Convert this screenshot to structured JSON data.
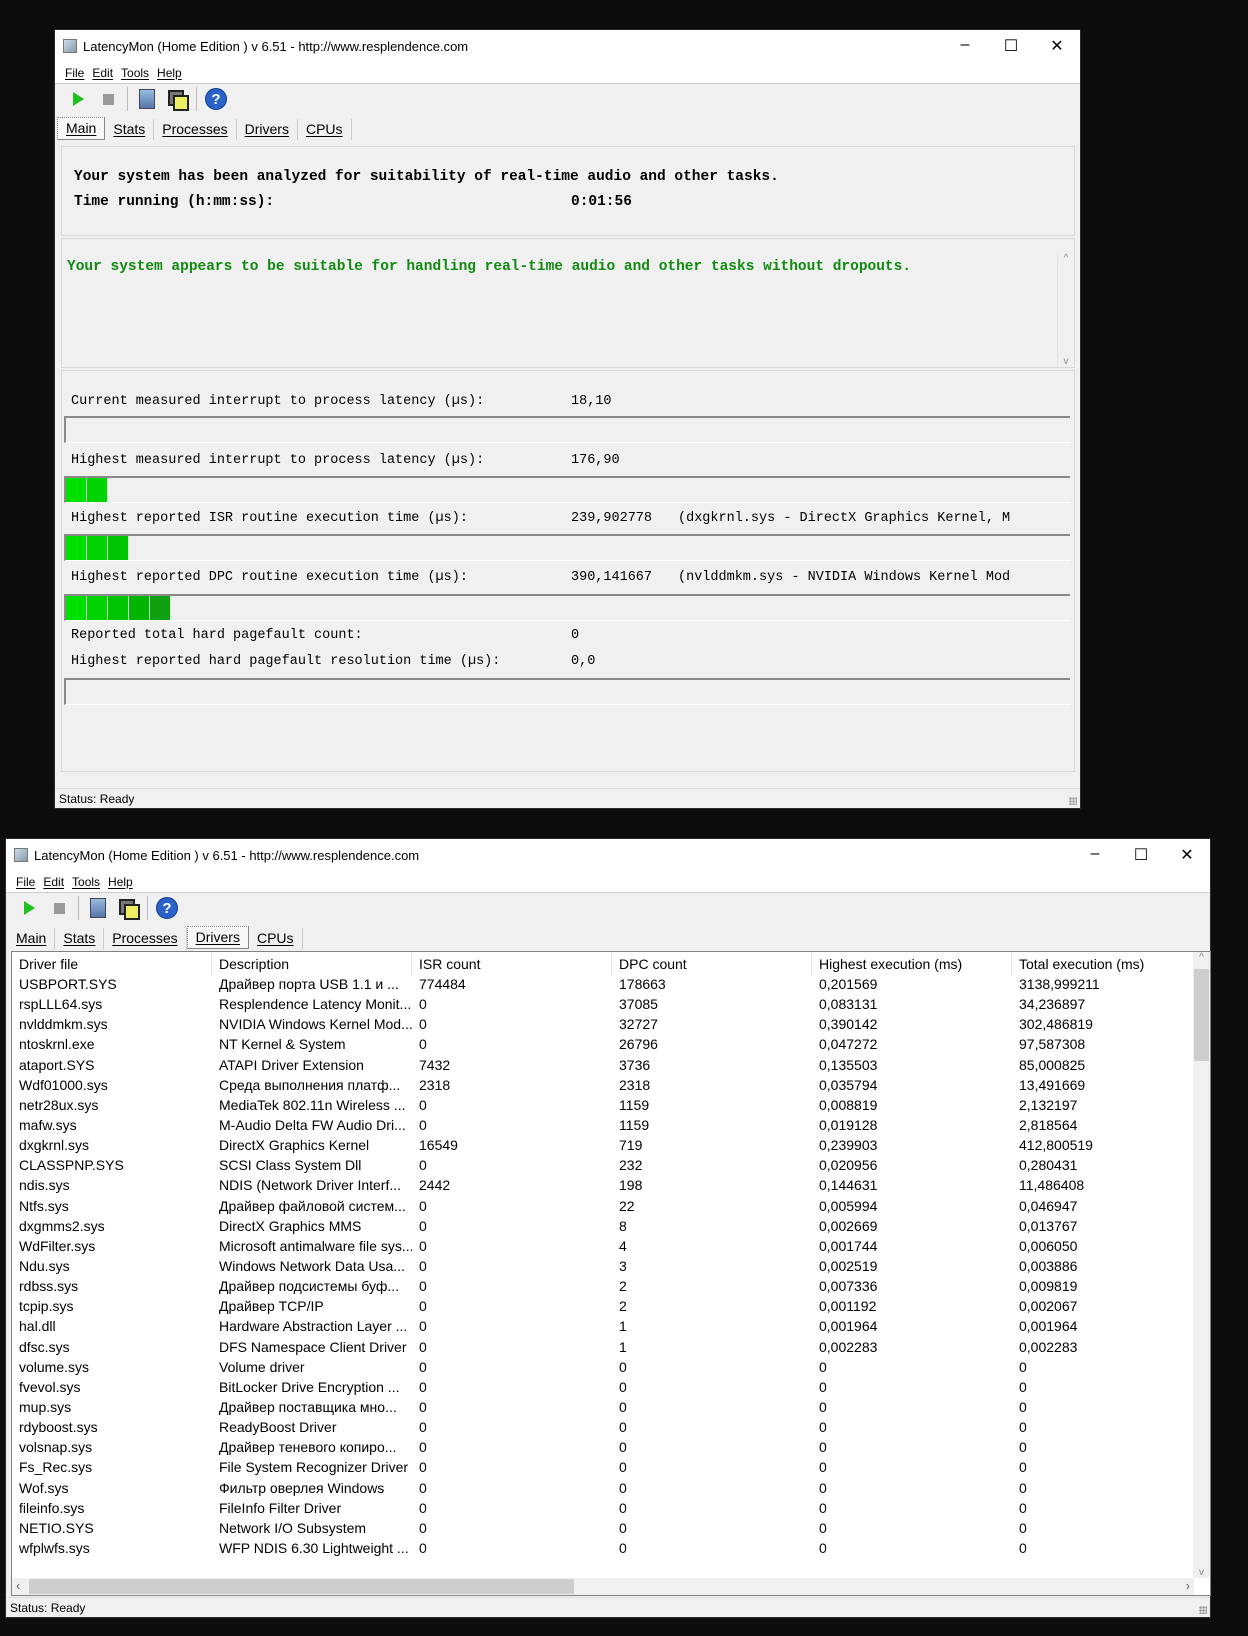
{
  "app": {
    "title": "LatencyMon  (Home Edition )  v 6.51 - http://www.resplendence.com",
    "window_controls": {
      "minimize": "–",
      "maximize": "☐",
      "close": "✕"
    },
    "menu": [
      "File",
      "Edit",
      "Tools",
      "Help"
    ],
    "toolbar": [
      "play-icon",
      "stop-icon",
      "wizard-icon",
      "windows-icon",
      "help-icon"
    ],
    "help_glyph": "?",
    "tabs": [
      "Main",
      "Stats",
      "Processes",
      "Drivers",
      "CPUs"
    ],
    "status": "Status: Ready"
  },
  "main": {
    "analyzed_text": "Your system has been analyzed for suitability of real-time audio and other tasks.",
    "time_label": "Time running (h:mm:ss):",
    "time_value": "0:01:56",
    "verdict": "Your system appears to be suitable for handling real-time audio and other tasks without dropouts.",
    "verdict_color": "#108a10",
    "metrics": [
      {
        "label": "Current measured interrupt to process latency (µs):",
        "value": "18,10",
        "extra": "",
        "bar_segments": 0
      },
      {
        "label": "Highest measured interrupt to process latency (µs):",
        "value": "176,90",
        "extra": "",
        "bar_segments": 2
      },
      {
        "label": "Highest reported ISR routine execution time (µs):",
        "value": "239,902778",
        "extra": "(dxgkrnl.sys - DirectX Graphics Kernel, M",
        "bar_segments": 3
      },
      {
        "label": "Highest reported DPC routine execution time (µs):",
        "value": "390,141667",
        "extra": "(nvlddmkm.sys - NVIDIA Windows Kernel Mod",
        "bar_segments": 5
      }
    ],
    "pagefault_count_label": "Reported total hard pagefault count:",
    "pagefault_count": "0",
    "pagefault_time_label": "Highest reported hard pagefault resolution time (µs):",
    "pagefault_time": "0,0",
    "pagefault_bar_segments": 0
  },
  "drivers": {
    "columns": [
      "Driver file",
      "Description",
      "ISR count",
      "DPC count",
      "Highest execution (ms)",
      "Total execution (ms)"
    ],
    "rows": [
      [
        "USBPORT.SYS",
        "Драйвер порта USB 1.1 и ...",
        "774484",
        "178663",
        "0,201569",
        "3138,999211"
      ],
      [
        "rspLLL64.sys",
        "Resplendence Latency Monit...",
        "0",
        "37085",
        "0,083131",
        "34,236897"
      ],
      [
        "nvlddmkm.sys",
        "NVIDIA Windows Kernel Mod...",
        "0",
        "32727",
        "0,390142",
        "302,486819"
      ],
      [
        "ntoskrnl.exe",
        "NT Kernel & System",
        "0",
        "26796",
        "0,047272",
        "97,587308"
      ],
      [
        "ataport.SYS",
        "ATAPI Driver Extension",
        "7432",
        "3736",
        "0,135503",
        "85,000825"
      ],
      [
        "Wdf01000.sys",
        "Среда выполнения платф...",
        "2318",
        "2318",
        "0,035794",
        "13,491669"
      ],
      [
        "netr28ux.sys",
        "MediaTek 802.11n Wireless ...",
        "0",
        "1159",
        "0,008819",
        "2,132197"
      ],
      [
        "mafw.sys",
        "M-Audio Delta FW Audio Dri...",
        "0",
        "1159",
        "0,019128",
        "2,818564"
      ],
      [
        "dxgkrnl.sys",
        "DirectX Graphics Kernel",
        "16549",
        "719",
        "0,239903",
        "412,800519"
      ],
      [
        "CLASSPNP.SYS",
        "SCSI Class System Dll",
        "0",
        "232",
        "0,020956",
        "0,280431"
      ],
      [
        "ndis.sys",
        "NDIS (Network Driver Interf...",
        "2442",
        "198",
        "0,144631",
        "11,486408"
      ],
      [
        "Ntfs.sys",
        "Драйвер файловой систем...",
        "0",
        "22",
        "0,005994",
        "0,046947"
      ],
      [
        "dxgmms2.sys",
        "DirectX Graphics MMS",
        "0",
        "8",
        "0,002669",
        "0,013767"
      ],
      [
        "WdFilter.sys",
        "Microsoft antimalware file sys...",
        "0",
        "4",
        "0,001744",
        "0,006050"
      ],
      [
        "Ndu.sys",
        "Windows Network Data Usa...",
        "0",
        "3",
        "0,002519",
        "0,003886"
      ],
      [
        "rdbss.sys",
        "Драйвер подсистемы буф...",
        "0",
        "2",
        "0,007336",
        "0,009819"
      ],
      [
        "tcpip.sys",
        "Драйвер TCP/IP",
        "0",
        "2",
        "0,001192",
        "0,002067"
      ],
      [
        "hal.dll",
        "Hardware Abstraction Layer ...",
        "0",
        "1",
        "0,001964",
        "0,001964"
      ],
      [
        "dfsc.sys",
        "DFS Namespace Client Driver",
        "0",
        "1",
        "0,002283",
        "0,002283"
      ],
      [
        "volume.sys",
        "Volume driver",
        "0",
        "0",
        "0",
        "0"
      ],
      [
        "fvevol.sys",
        "BitLocker Drive Encryption ...",
        "0",
        "0",
        "0",
        "0"
      ],
      [
        "mup.sys",
        "Драйвер поставщика мно...",
        "0",
        "0",
        "0",
        "0"
      ],
      [
        "rdyboost.sys",
        "ReadyBoost Driver",
        "0",
        "0",
        "0",
        "0"
      ],
      [
        "volsnap.sys",
        "Драйвер теневого копиро...",
        "0",
        "0",
        "0",
        "0"
      ],
      [
        "Fs_Rec.sys",
        "File System Recognizer Driver",
        "0",
        "0",
        "0",
        "0"
      ],
      [
        "Wof.sys",
        "Фильтр оверлея Windows",
        "0",
        "0",
        "0",
        "0"
      ],
      [
        "fileinfo.sys",
        "FileInfo Filter Driver",
        "0",
        "0",
        "0",
        "0"
      ],
      [
        "NETIO.SYS",
        "Network I/O Subsystem",
        "0",
        "0",
        "0",
        "0"
      ],
      [
        "wfplwfs.sys",
        "WFP NDIS 6.30 Lightweight ...",
        "0",
        "0",
        "0",
        "0"
      ]
    ]
  }
}
